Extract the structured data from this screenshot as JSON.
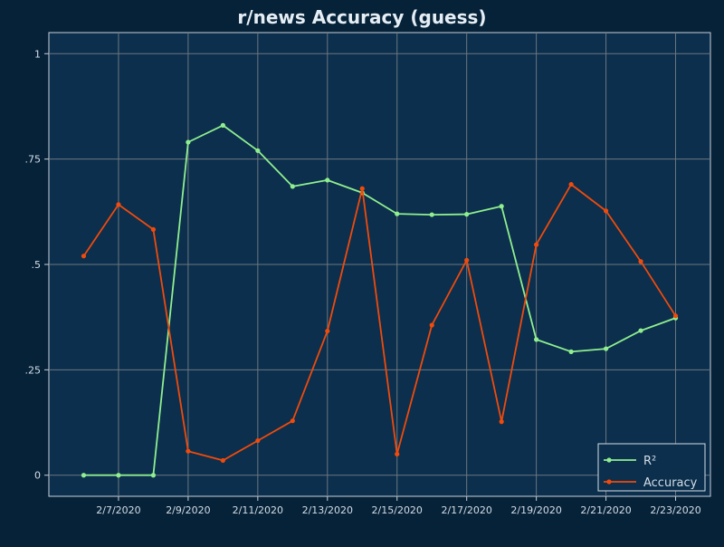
{
  "chart_data": {
    "type": "line",
    "title": "r/news Accuracy (guess)",
    "xlabel": "",
    "ylabel": "",
    "x": [
      "2020-02-06",
      "2020-02-07",
      "2020-02-08",
      "2020-02-09",
      "2020-02-10",
      "2020-02-11",
      "2020-02-12",
      "2020-02-13",
      "2020-02-14",
      "2020-02-15",
      "2020-02-16",
      "2020-02-17",
      "2020-02-18",
      "2020-02-19",
      "2020-02-20",
      "2020-02-21",
      "2020-02-22",
      "2020-02-23"
    ],
    "x_tick_labels": [
      "2/7/2020",
      "2/9/2020",
      "2/11/2020",
      "2/13/2020",
      "2/15/2020",
      "2/17/2020",
      "2/19/2020",
      "2/21/2020",
      "2/23/2020"
    ],
    "x_tick_dates": [
      "2020-02-07",
      "2020-02-09",
      "2020-02-11",
      "2020-02-13",
      "2020-02-15",
      "2020-02-17",
      "2020-02-19",
      "2020-02-21",
      "2020-02-23"
    ],
    "y_tick_values": [
      0,
      0.25,
      0.5,
      0.75,
      1
    ],
    "y_tick_labels": [
      "0",
      ".25",
      ".5",
      ".75",
      "1"
    ],
    "xlim": [
      "2020-02-05",
      "2020-02-24"
    ],
    "ylim": [
      -0.05,
      1.05
    ],
    "grid": true,
    "legend_position": "bottom-right",
    "series": [
      {
        "name": "R²",
        "color": "#90ee90",
        "values": [
          0,
          0,
          0,
          0.79,
          0.83,
          0.77,
          0.685,
          0.7,
          0.67,
          0.62,
          0.618,
          0.619,
          0.638,
          0.322,
          0.293,
          0.3,
          0.343,
          0.373
        ]
      },
      {
        "name": "Accuracy",
        "color": "#f04a0c",
        "values": [
          0.52,
          0.642,
          0.583,
          0.057,
          0.035,
          0.082,
          0.129,
          0.342,
          0.68,
          0.05,
          0.356,
          0.51,
          0.127,
          0.547,
          0.69,
          0.627,
          0.507,
          0.378
        ]
      }
    ]
  },
  "colors": {
    "page_background": "#062238",
    "plot_background": "#0b2f4c",
    "grid": "#6e7780",
    "axis": "#c9d2da",
    "text": "#e6eef5"
  }
}
